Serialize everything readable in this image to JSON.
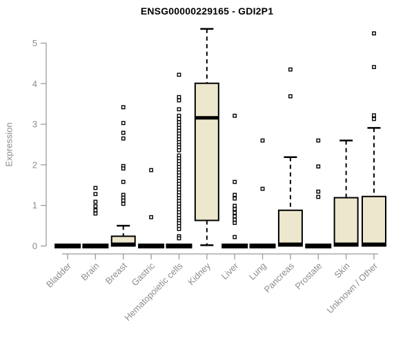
{
  "chart_data": {
    "type": "box",
    "title": "ENSG00000229165 - GDI2P1",
    "ylabel": "Expression",
    "xlabel": "",
    "yticks": [
      0,
      1,
      2,
      3,
      4,
      5
    ],
    "ylim": [
      0,
      5.5
    ],
    "grid": false,
    "legend": "none",
    "categories": [
      "Bladder",
      "Brain",
      "Breast",
      "Gastric",
      "Hematopoietic cells",
      "Kidney",
      "Liver",
      "Lung",
      "Pancreas",
      "Prostate",
      "Skin",
      "Unknown / Other"
    ],
    "series": [
      {
        "name": "Bladder",
        "low": 0,
        "q1": 0,
        "median": 0,
        "q3": 0,
        "high": 0,
        "outliers": []
      },
      {
        "name": "Brain",
        "low": 0,
        "q1": 0,
        "median": 0,
        "q3": 0,
        "high": 0,
        "outliers": [
          1.43,
          1.28,
          1.09,
          0.98,
          0.88,
          0.8
        ]
      },
      {
        "name": "Breast",
        "low": 0,
        "q1": 0,
        "median": 0,
        "q3": 0.24,
        "high": 0.5,
        "outliers": [
          3.42,
          3.03,
          2.79,
          2.65,
          1.97,
          1.91,
          1.58,
          1.26,
          1.19,
          1.12,
          1.04
        ]
      },
      {
        "name": "Gastric",
        "low": 0,
        "q1": 0,
        "median": 0,
        "q3": 0,
        "high": 0,
        "outliers": [
          1.87,
          0.71
        ]
      },
      {
        "name": "Hematopoietic cells",
        "low": 0,
        "q1": 0,
        "median": 0,
        "q3": 0,
        "high": 0,
        "outliers": [
          4.22,
          3.67,
          3.59,
          3.37,
          3.21,
          3.13,
          3.05,
          2.98,
          2.91,
          2.84,
          2.77,
          2.7,
          2.63,
          2.56,
          2.49,
          2.43,
          2.36,
          2.23,
          2.16,
          2.09,
          2.02,
          1.95,
          1.88,
          1.81,
          1.74,
          1.67,
          1.6,
          1.53,
          1.46,
          1.39,
          1.32,
          1.25,
          1.18,
          1.11,
          1.04,
          0.97,
          0.9,
          0.83,
          0.76,
          0.69,
          0.62,
          0.56,
          0.49,
          0.42,
          0.24,
          0.19
        ]
      },
      {
        "name": "Kidney",
        "low": 0.02,
        "q1": 0.63,
        "median": 3.16,
        "q3": 4.01,
        "high": 5.35,
        "outliers": []
      },
      {
        "name": "Liver",
        "low": 0,
        "q1": 0,
        "median": 0,
        "q3": 0,
        "high": 0,
        "outliers": [
          3.21,
          1.58,
          1.26,
          1.17,
          0.99,
          0.91,
          0.82,
          0.73,
          0.65,
          0.57,
          0.22
        ]
      },
      {
        "name": "Lung",
        "low": 0,
        "q1": 0,
        "median": 0,
        "q3": 0,
        "high": 0,
        "outliers": [
          2.6,
          1.41
        ]
      },
      {
        "name": "Pancreas",
        "low": 0,
        "q1": 0,
        "median": 0,
        "q3": 0.88,
        "high": 2.19,
        "outliers": [
          4.35,
          3.69
        ]
      },
      {
        "name": "Prostate",
        "low": 0,
        "q1": 0,
        "median": 0,
        "q3": 0,
        "high": 0,
        "outliers": [
          2.6,
          1.96,
          1.34,
          1.21
        ]
      },
      {
        "name": "Skin",
        "low": 0,
        "q1": 0,
        "median": 0,
        "q3": 1.19,
        "high": 2.6,
        "outliers": []
      },
      {
        "name": "Unknown / Other",
        "low": 0,
        "q1": 0,
        "median": 0,
        "q3": 1.22,
        "high": 2.91,
        "outliers": [
          5.24,
          4.41,
          3.22,
          3.13
        ]
      }
    ],
    "colors": {
      "box_fill": "#EDE7CE",
      "box_stroke": "#000000",
      "median": "#000000",
      "whisker": "#000000",
      "outlier_stroke": "#000000",
      "outlier_fill": "#FFFFFF",
      "axis": "#9A9A9A",
      "tick_label": "#8C8C8C",
      "title": "#000000",
      "background": "#FFFFFF"
    }
  }
}
